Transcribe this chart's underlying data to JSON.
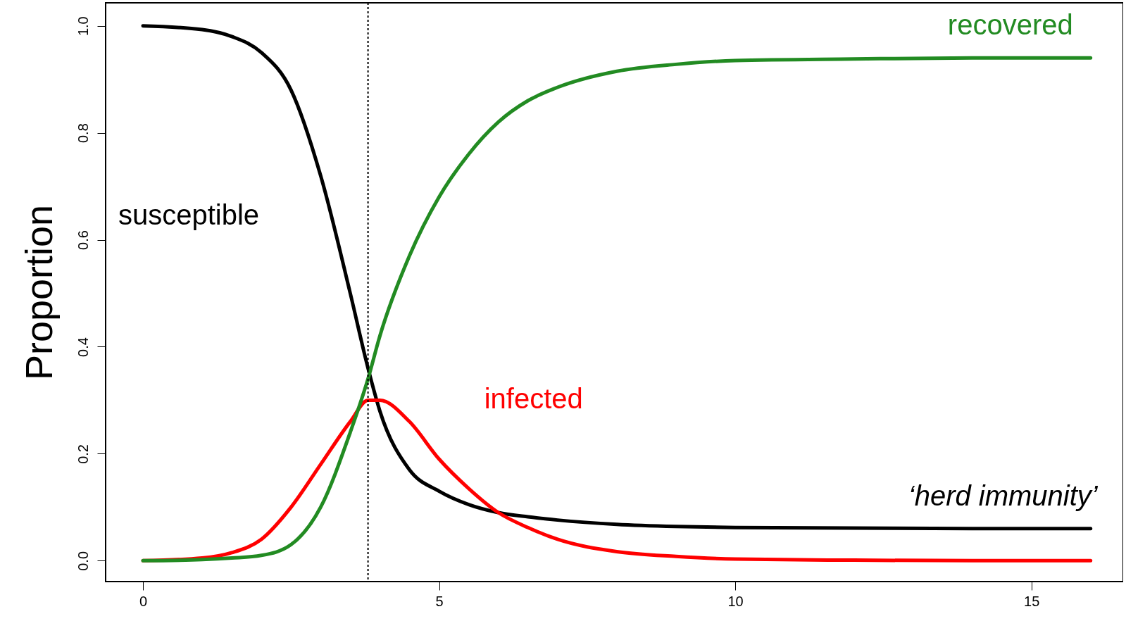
{
  "chart_data": {
    "type": "line",
    "ylabel": "Proportion",
    "x": [
      0,
      1,
      1.5,
      2,
      2.5,
      3,
      3.5,
      3.8,
      4,
      4.5,
      5,
      5.5,
      6,
      6.5,
      7,
      8,
      9,
      10,
      12,
      14,
      16
    ],
    "series": [
      {
        "name": "susceptible",
        "color": "#000000",
        "values": [
          1.0,
          0.993,
          0.98,
          0.95,
          0.88,
          0.72,
          0.5,
          0.36,
          0.28,
          0.17,
          0.13,
          0.105,
          0.09,
          0.082,
          0.076,
          0.068,
          0.064,
          0.062,
          0.061,
          0.06,
          0.06
        ]
      },
      {
        "name": "infected",
        "color": "#ff0000",
        "values": [
          0.0,
          0.005,
          0.015,
          0.04,
          0.1,
          0.18,
          0.26,
          0.3,
          0.3,
          0.26,
          0.19,
          0.135,
          0.09,
          0.062,
          0.04,
          0.017,
          0.008,
          0.003,
          0.001,
          0.0,
          0.0
        ]
      },
      {
        "name": "recovered",
        "color": "#228b22",
        "values": [
          0.0,
          0.002,
          0.005,
          0.01,
          0.03,
          0.1,
          0.24,
          0.34,
          0.42,
          0.57,
          0.68,
          0.76,
          0.82,
          0.86,
          0.885,
          0.915,
          0.928,
          0.935,
          0.938,
          0.94,
          0.94
        ]
      }
    ],
    "xlim": [
      -0.63,
      16.55
    ],
    "ylim": [
      -0.039,
      1.043
    ],
    "xticks": [
      0,
      5,
      10,
      15
    ],
    "yticks": [
      {
        "value": 0,
        "label": "0.0"
      },
      {
        "value": 0.2,
        "label": "0.2"
      },
      {
        "value": 0.4,
        "label": "0.4"
      },
      {
        "value": 0.6,
        "label": "0.6"
      },
      {
        "value": 0.8,
        "label": "0.8"
      },
      {
        "value": 1,
        "label": "1.0"
      }
    ],
    "ref_lines": [
      {
        "axis": "x",
        "value": 3.8,
        "line_style": "dotted",
        "color": "#000000"
      }
    ],
    "annotations": [
      {
        "text": "‘herd immunity’",
        "x": 16,
        "y": 0.06
      }
    ],
    "marker": "none",
    "line_style": "solid"
  }
}
